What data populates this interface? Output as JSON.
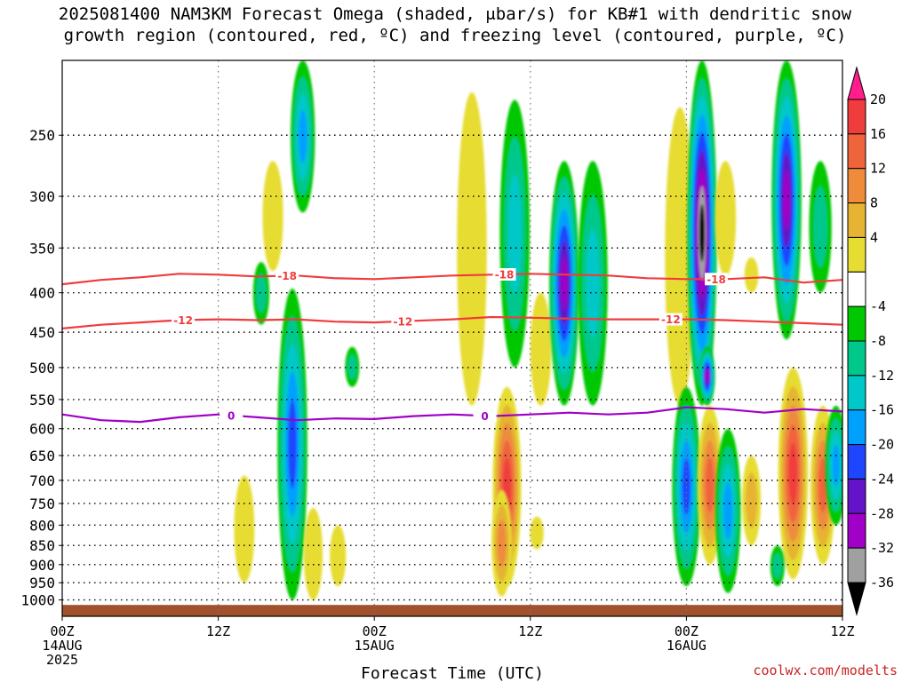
{
  "title": {
    "line1": "2025081400 NAM3KM Forecast Omega (shaded, μbar/s) for KB#1 with dendritic snow",
    "line2": "growth region (contoured, red, ºC) and freezing level (contoured, purple, ºC)"
  },
  "credit": "coolwx.com/modelts",
  "chart_data": {
    "type": "heatmap",
    "xlabel": "Forecast Time (UTC)",
    "x_hours": [
      0,
      12,
      24,
      36,
      48,
      60
    ],
    "x_tick_labels": [
      {
        "hour": 0,
        "lines": [
          "00Z",
          "14AUG",
          "2025"
        ]
      },
      {
        "hour": 12,
        "lines": [
          "12Z"
        ]
      },
      {
        "hour": 24,
        "lines": [
          "00Z",
          "15AUG"
        ]
      },
      {
        "hour": 36,
        "lines": [
          "12Z"
        ]
      },
      {
        "hour": 48,
        "lines": [
          "00Z",
          "16AUG"
        ]
      },
      {
        "hour": 60,
        "lines": [
          "12Z"
        ]
      }
    ],
    "y_axis": {
      "log_scale": true,
      "pressure_top_hPa": 200,
      "pressure_bottom_hPa": 1050,
      "ticks_hPa": [
        250,
        300,
        350,
        400,
        450,
        500,
        550,
        600,
        650,
        700,
        750,
        800,
        850,
        900,
        950,
        1000
      ]
    },
    "grid": true,
    "colorbar": {
      "units": "μbar/s",
      "tick_labels": [
        "20",
        "16",
        "12",
        "8",
        "4",
        "-4",
        "-8",
        "-12",
        "-16",
        "-20",
        "-24",
        "-28",
        "-32",
        "-36"
      ],
      "colors": [
        "#ff1e8c",
        "#f03c3c",
        "#f0643c",
        "#ee8c3c",
        "#e6b432",
        "#e6dc32",
        "#ffffff",
        "#00c800",
        "#00c88c",
        "#00c8c8",
        "#00a0ff",
        "#1e46ff",
        "#6414c8",
        "#a000c8",
        "#a0a0a0",
        "#000000"
      ],
      "levels": [
        24,
        20,
        16,
        12,
        8,
        4,
        -4,
        -8,
        -12,
        -16,
        -20,
        -24,
        -28,
        -32,
        -36
      ]
    },
    "omega_blobs": [
      {
        "hour": 15.3,
        "p_top": 365,
        "p_bot": 440,
        "min": -10
      },
      {
        "hour": 18.5,
        "p_top": 200,
        "p_bot": 315,
        "min": -16
      },
      {
        "hour": 17.7,
        "p_top": 395,
        "p_bot": 1000,
        "min": -20
      },
      {
        "hour": 16.2,
        "p_top": 270,
        "p_bot": 375,
        "min": 7
      },
      {
        "hour": 19.3,
        "p_top": 760,
        "p_bot": 1000,
        "min": 6
      },
      {
        "hour": 21.2,
        "p_top": 800,
        "p_bot": 960,
        "min": 7
      },
      {
        "hour": 14.0,
        "p_top": 690,
        "p_bot": 950,
        "min": 5
      },
      {
        "hour": 22.3,
        "p_top": 470,
        "p_bot": 530,
        "min": -9
      },
      {
        "hour": 31.5,
        "p_top": 220,
        "p_bot": 560,
        "min": 5
      },
      {
        "hour": 34.8,
        "p_top": 225,
        "p_bot": 500,
        "min": -14
      },
      {
        "hour": 34.2,
        "p_top": 530,
        "p_bot": 960,
        "min": 20
      },
      {
        "hour": 33.8,
        "p_top": 720,
        "p_bot": 990,
        "min": 12
      },
      {
        "hour": 36.8,
        "p_top": 400,
        "p_bot": 560,
        "min": 5
      },
      {
        "hour": 38.6,
        "p_top": 270,
        "p_bot": 560,
        "min": -30
      },
      {
        "hour": 40.8,
        "p_top": 270,
        "p_bot": 560,
        "min": -12
      },
      {
        "hour": 36.5,
        "p_top": 780,
        "p_bot": 860,
        "min": 5
      },
      {
        "hour": 47.5,
        "p_top": 230,
        "p_bot": 560,
        "min": 6
      },
      {
        "hour": 49.2,
        "p_top": 200,
        "p_bot": 560,
        "min": -36
      },
      {
        "hour": 51.0,
        "p_top": 270,
        "p_bot": 380,
        "min": 6
      },
      {
        "hour": 49.6,
        "p_top": 470,
        "p_bot": 560,
        "min": -28
      },
      {
        "hour": 48.0,
        "p_top": 530,
        "p_bot": 960,
        "min": -20
      },
      {
        "hour": 49.8,
        "p_top": 560,
        "p_bot": 900,
        "min": 16
      },
      {
        "hour": 51.2,
        "p_top": 600,
        "p_bot": 980,
        "min": -18
      },
      {
        "hour": 53.0,
        "p_top": 360,
        "p_bot": 400,
        "min": 7
      },
      {
        "hour": 55.7,
        "p_top": 200,
        "p_bot": 460,
        "min": -28
      },
      {
        "hour": 56.2,
        "p_top": 500,
        "p_bot": 940,
        "min": 22
      },
      {
        "hour": 58.5,
        "p_top": 560,
        "p_bot": 900,
        "min": 16
      },
      {
        "hour": 59.5,
        "p_top": 560,
        "p_bot": 800,
        "min": -18
      },
      {
        "hour": 58.3,
        "p_top": 270,
        "p_bot": 400,
        "min": -10
      },
      {
        "hour": 53.0,
        "p_top": 650,
        "p_bot": 850,
        "min": 8
      },
      {
        "hour": 55.0,
        "p_top": 850,
        "p_bot": 960,
        "min": -10
      }
    ],
    "contours": [
      {
        "name": "-18",
        "color": "#f03c3c",
        "hours": [
          0,
          3,
          6,
          9,
          12,
          15,
          18,
          21,
          24,
          27,
          30,
          33,
          36,
          39,
          42,
          45,
          48,
          51,
          54,
          57,
          60
        ],
        "p": [
          390,
          385,
          382,
          378,
          379,
          381,
          380,
          383,
          384,
          382,
          380,
          379,
          378,
          379,
          380,
          383,
          384,
          384,
          382,
          388,
          385
        ],
        "labels_at": [
          17.3,
          34.0,
          50.3
        ]
      },
      {
        "name": "-12",
        "color": "#f03c3c",
        "hours": [
          0,
          3,
          6,
          9,
          12,
          15,
          18,
          21,
          24,
          27,
          30,
          33,
          36,
          39,
          42,
          45,
          48,
          51,
          54,
          57,
          60
        ],
        "p": [
          445,
          440,
          437,
          434,
          433,
          434,
          433,
          436,
          437,
          435,
          433,
          430,
          431,
          432,
          433,
          433,
          433,
          434,
          436,
          438,
          440
        ],
        "labels_at": [
          9.3,
          26.2,
          46.8
        ]
      },
      {
        "name": "0",
        "color": "#a000c8",
        "hours": [
          0,
          3,
          6,
          9,
          12,
          15,
          18,
          21,
          24,
          27,
          30,
          33,
          36,
          39,
          42,
          45,
          48,
          51,
          54,
          57,
          60
        ],
        "p": [
          575,
          585,
          588,
          580,
          575,
          580,
          585,
          582,
          583,
          578,
          575,
          578,
          575,
          572,
          575,
          572,
          563,
          566,
          572,
          566,
          570
        ],
        "labels_at": [
          13.0,
          32.5
        ]
      }
    ],
    "ground": {
      "p_top": 1015,
      "p_bottom": 1050,
      "color": "#a0522d"
    }
  }
}
